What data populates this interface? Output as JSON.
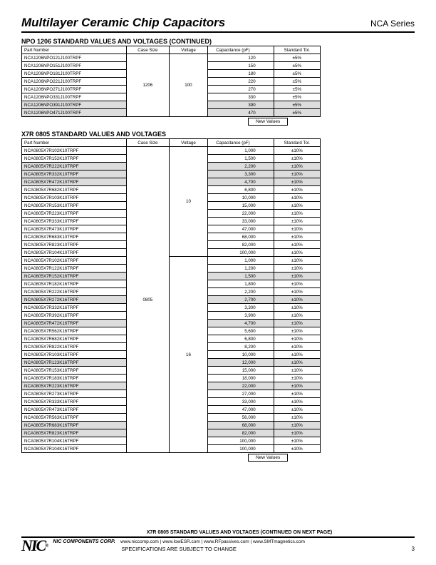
{
  "header": {
    "title": "Multilayer Ceramic Chip Capacitors",
    "series": "NCA Series"
  },
  "section1": {
    "title": "NPO 1206 STANDARD VALUES AND VOLTAGES (CONTINUED)",
    "columns": [
      "Part Number",
      "Case Size",
      "Voltage",
      "Capacitance (pF)",
      "Standard Tol."
    ],
    "case_size": "1206",
    "voltage": "100",
    "rows": [
      {
        "pn": "NCA1206NPO121J100TRPF",
        "cap": "120",
        "tol": "±5%",
        "shaded": false
      },
      {
        "pn": "NCA1206NPO151J100TRPF",
        "cap": "150",
        "tol": "±5%",
        "shaded": false
      },
      {
        "pn": "NCA1206NPO181J100TRPF",
        "cap": "180",
        "tol": "±5%",
        "shaded": false
      },
      {
        "pn": "NCA1206NPO221J100TRPF",
        "cap": "220",
        "tol": "±5%",
        "shaded": false
      },
      {
        "pn": "NCA1206NPO271J100TRPF",
        "cap": "270",
        "tol": "±5%",
        "shaded": false
      },
      {
        "pn": "NCA1206NPO331J100TRPF",
        "cap": "330",
        "tol": "±5%",
        "shaded": false
      },
      {
        "pn": "NCA1206NPO391J100TRPF",
        "cap": "390",
        "tol": "±5%",
        "shaded": true
      },
      {
        "pn": "NCA1206NPO471J100TRPF",
        "cap": "470",
        "tol": "±5%",
        "shaded": true
      }
    ],
    "new_values": "New Values"
  },
  "section2": {
    "title": "X7R 0805 STANDARD VALUES AND VOLTAGES",
    "columns": [
      "Part Number",
      "Case Size",
      "Voltage",
      "Capacitance (pF)",
      "Standard Tol."
    ],
    "case_size": "0805",
    "voltage1": "10",
    "voltage1_count": 14,
    "voltage2": "16",
    "voltage2_count": 25,
    "rows": [
      {
        "pn": "NCA0805X7R102K10TRPF",
        "cap": "1,000",
        "tol": "±10%",
        "shaded": false
      },
      {
        "pn": "NCA0805X7R152K10TRPF",
        "cap": "1,500",
        "tol": "±10%",
        "shaded": false
      },
      {
        "pn": "NCA0805X7R222K10TRPF",
        "cap": "2,200",
        "tol": "±10%",
        "shaded": true
      },
      {
        "pn": "NCA0805X7R332K10TRPF",
        "cap": "3,300",
        "tol": "±10%",
        "shaded": true
      },
      {
        "pn": "NCA0805X7R472K10TRPF",
        "cap": "4,700",
        "tol": "±10%",
        "shaded": true
      },
      {
        "pn": "NCA0805X7R682K10TRPF",
        "cap": "6,800",
        "tol": "±10%",
        "shaded": false
      },
      {
        "pn": "NCA0805X7R103K10TRPF",
        "cap": "10,000",
        "tol": "±10%",
        "shaded": false
      },
      {
        "pn": "NCA0805X7R153K10TRPF",
        "cap": "15,000",
        "tol": "±10%",
        "shaded": false
      },
      {
        "pn": "NCA0805X7R223K10TRPF",
        "cap": "22,000",
        "tol": "±10%",
        "shaded": false
      },
      {
        "pn": "NCA0805X7R333K10TRPF",
        "cap": "33,000",
        "tol": "±10%",
        "shaded": false
      },
      {
        "pn": "NCA0805X7R473K10TRPF",
        "cap": "47,000",
        "tol": "±10%",
        "shaded": false
      },
      {
        "pn": "NCA0805X7R683K10TRPF",
        "cap": "68,000",
        "tol": "±10%",
        "shaded": false
      },
      {
        "pn": "NCA0805X7R823K10TRPF",
        "cap": "82,000",
        "tol": "±10%",
        "shaded": false
      },
      {
        "pn": "NCA0805X7R104K10TRPF",
        "cap": "100,000",
        "tol": "±10%",
        "shaded": false
      },
      {
        "pn": "NCA0805X7R102K16TRPF",
        "cap": "1,000",
        "tol": "±10%",
        "shaded": false
      },
      {
        "pn": "NCA0805X7R122K16TRPF",
        "cap": "1,200",
        "tol": "±10%",
        "shaded": false
      },
      {
        "pn": "NCA0805X7R152K16TRPF",
        "cap": "1,500",
        "tol": "±10%",
        "shaded": true
      },
      {
        "pn": "NCA0805X7R182K16TRPF",
        "cap": "1,800",
        "tol": "±10%",
        "shaded": false
      },
      {
        "pn": "NCA0805X7R222K16TRPF",
        "cap": "2,200",
        "tol": "±10%",
        "shaded": false
      },
      {
        "pn": "NCA0805X7R272K16TRPF",
        "cap": "2,700",
        "tol": "±10%",
        "shaded": true
      },
      {
        "pn": "NCA0805X7R332K16TRPF",
        "cap": "3,300",
        "tol": "±10%",
        "shaded": false
      },
      {
        "pn": "NCA0805X7R392K16TRPF",
        "cap": "3,900",
        "tol": "±10%",
        "shaded": false
      },
      {
        "pn": "NCA0805X7R472K16TRPF",
        "cap": "4,700",
        "tol": "±10%",
        "shaded": true
      },
      {
        "pn": "NCA0805X7R562K16TRPF",
        "cap": "5,600",
        "tol": "±10%",
        "shaded": false
      },
      {
        "pn": "NCA0805X7R682K16TRPF",
        "cap": "6,800",
        "tol": "±10%",
        "shaded": false
      },
      {
        "pn": "NCA0805X7R822K16TRPF",
        "cap": "8,200",
        "tol": "±10%",
        "shaded": false
      },
      {
        "pn": "NCA0805X7R103K16TRPF",
        "cap": "10,000",
        "tol": "±10%",
        "shaded": false
      },
      {
        "pn": "NCA0805X7R123K16TRPF",
        "cap": "12,000",
        "tol": "±10%",
        "shaded": true
      },
      {
        "pn": "NCA0805X7R153K16TRPF",
        "cap": "15,000",
        "tol": "±10%",
        "shaded": false
      },
      {
        "pn": "NCA0805X7R183K16TRPF",
        "cap": "18,000",
        "tol": "±10%",
        "shaded": false
      },
      {
        "pn": "NCA0805X7R223K16TRPF",
        "cap": "22,000",
        "tol": "±10%",
        "shaded": true
      },
      {
        "pn": "NCA0805X7R273K16TRPF",
        "cap": "27,000",
        "tol": "±10%",
        "shaded": false
      },
      {
        "pn": "NCA0805X7R333K16TRPF",
        "cap": "33,000",
        "tol": "±10%",
        "shaded": false
      },
      {
        "pn": "NCA0805X7R473K16TRPF",
        "cap": "47,000",
        "tol": "±10%",
        "shaded": false
      },
      {
        "pn": "NCA0805X7R563K16TRPF",
        "cap": "56,000",
        "tol": "±10%",
        "shaded": false
      },
      {
        "pn": "NCA0805X7R683K16TRPF",
        "cap": "68,000",
        "tol": "±10%",
        "shaded": true
      },
      {
        "pn": "NCA0805X7R823K16TRPF",
        "cap": "82,000",
        "tol": "±10%",
        "shaded": true
      },
      {
        "pn": "NCA0805X7R104K16TRPF",
        "cap": "100,000",
        "tol": "±10%",
        "shaded": false
      },
      {
        "pn": "NCA0805X7R104K16TRPF",
        "cap": "100,000",
        "tol": "±10%",
        "shaded": false
      }
    ],
    "new_values": "New Values"
  },
  "footer": {
    "continued": "X7R 0805 STANDARD VALUES AND VOLTAGES (CONTINUED ON NEXT PAGE)",
    "logo": "NIC",
    "corp": "NIC COMPONENTS CORP.",
    "links": "www.niccomp.com   |   www.lowESR.com   |   www.RFpassives.com   |   www.SMTmagnetics.com",
    "spec": "SPECIFICATIONS ARE SUBJECT TO CHANGE",
    "page": "3"
  }
}
